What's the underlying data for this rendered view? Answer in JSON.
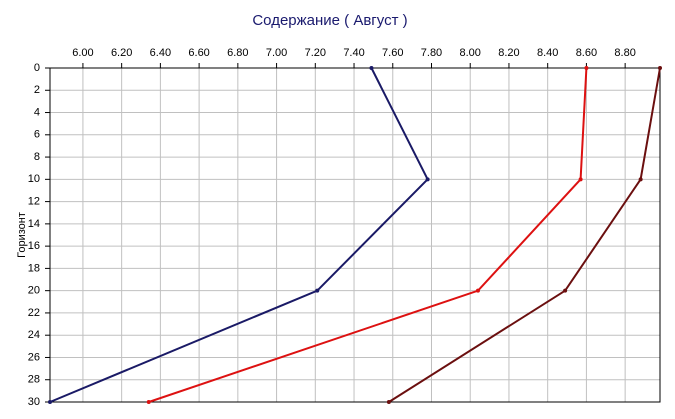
{
  "chart_data": {
    "type": "line",
    "title": "Содержание    ( Август )",
    "y_label": "Горизонт",
    "depths": [
      0,
      10,
      20,
      30
    ],
    "series": [
      {
        "color": "#1a1a66",
        "values": [
          7.49,
          7.78,
          7.21,
          5.83
        ]
      },
      {
        "color": "#dd1111",
        "values": [
          8.6,
          8.57,
          8.04,
          6.34
        ]
      },
      {
        "color": "#6b0f0f",
        "values": [
          8.98,
          8.88,
          8.49,
          7.58
        ]
      }
    ],
    "xlim": [
      5.83,
      8.98
    ],
    "xticks": [
      {
        "value": 6.0,
        "label": "6.00"
      },
      {
        "value": 6.2,
        "label": "6.20"
      },
      {
        "value": 6.4,
        "label": "6.40"
      },
      {
        "value": 6.6,
        "label": "6.60"
      },
      {
        "value": 6.8,
        "label": "6.80"
      },
      {
        "value": 7.0,
        "label": "7.00"
      },
      {
        "value": 7.2,
        "label": "7.20"
      },
      {
        "value": 7.4,
        "label": "7.40"
      },
      {
        "value": 7.6,
        "label": "7.60"
      },
      {
        "value": 7.8,
        "label": "7.80"
      },
      {
        "value": 8.0,
        "label": "8.00"
      },
      {
        "value": 8.2,
        "label": "8.20"
      },
      {
        "value": 8.4,
        "label": "8.40"
      },
      {
        "value": 8.6,
        "label": "8.60"
      },
      {
        "value": 8.8,
        "label": "8.80"
      }
    ],
    "ylim": [
      0,
      30
    ],
    "y_reversed": true,
    "yticks": [
      0,
      2,
      4,
      6,
      8,
      10,
      12,
      14,
      16,
      18,
      20,
      22,
      24,
      26,
      28,
      30
    ],
    "grid": true
  }
}
